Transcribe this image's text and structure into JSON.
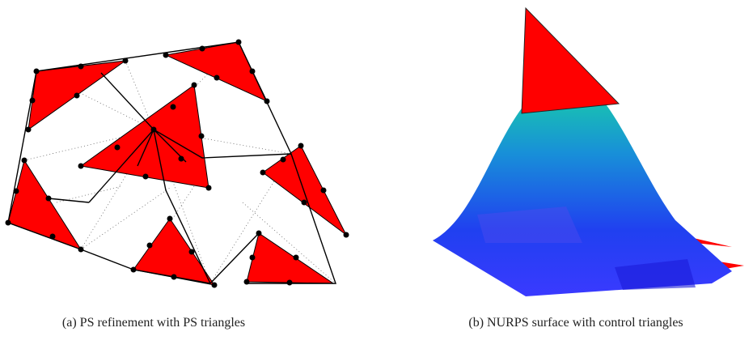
{
  "figures": [
    {
      "caption": "(a) PS refinement with PS triangles"
    },
    {
      "caption": "(b) NURPS surface with control triangles"
    }
  ]
}
